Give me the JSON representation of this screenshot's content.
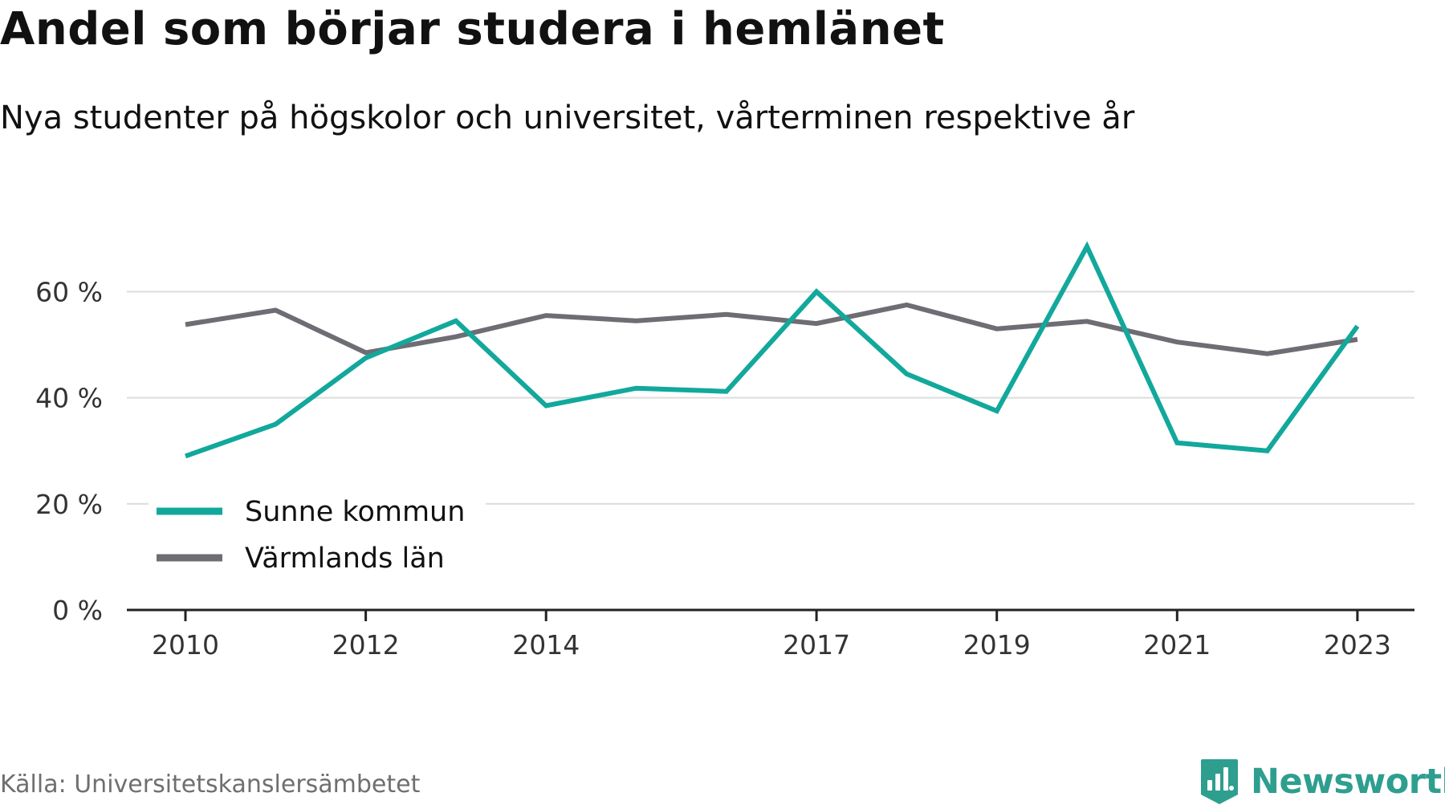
{
  "title": "Andel som börjar studera i hemlänet",
  "subtitle": "Nya studenter på högskolor och universitet, vårterminen respektive år",
  "source": "Källa: Universitetskanslersämbetet",
  "brand": {
    "name": "Newsworthy",
    "color": "#2e9e8f",
    "icon": "newsworthy-logo-icon"
  },
  "chart_data": {
    "type": "line",
    "title": "Andel som börjar studera i hemlänet",
    "subtitle": "Nya studenter på högskolor och universitet, vårterminen respektive år",
    "x": [
      2010,
      2011,
      2012,
      2013,
      2014,
      2015,
      2016,
      2017,
      2018,
      2019,
      2020,
      2021,
      2022,
      2023
    ],
    "x_ticks": [
      "2010",
      "2012",
      "2014",
      "2017",
      "2019",
      "2021",
      "2023"
    ],
    "y_ticks": [
      0,
      20,
      40,
      60
    ],
    "y_tick_labels": [
      "0 %",
      "20 %",
      "40 %",
      "60 %"
    ],
    "ylim": [
      0,
      72
    ],
    "grid": true,
    "legend_position": "bottom-left",
    "series": [
      {
        "name": "Sunne kommun",
        "color": "#12a89c",
        "values": [
          29,
          35,
          47.5,
          54.5,
          38.5,
          41.8,
          41.2,
          60,
          44.5,
          37.5,
          68.5,
          31.5,
          30,
          53.5
        ]
      },
      {
        "name": "Värmlands län",
        "color": "#6e6d74",
        "values": [
          53.8,
          56.5,
          48.5,
          51.5,
          55.5,
          54.5,
          55.7,
          54,
          57.5,
          53,
          54.4,
          50.5,
          48.3,
          51
        ]
      }
    ]
  }
}
